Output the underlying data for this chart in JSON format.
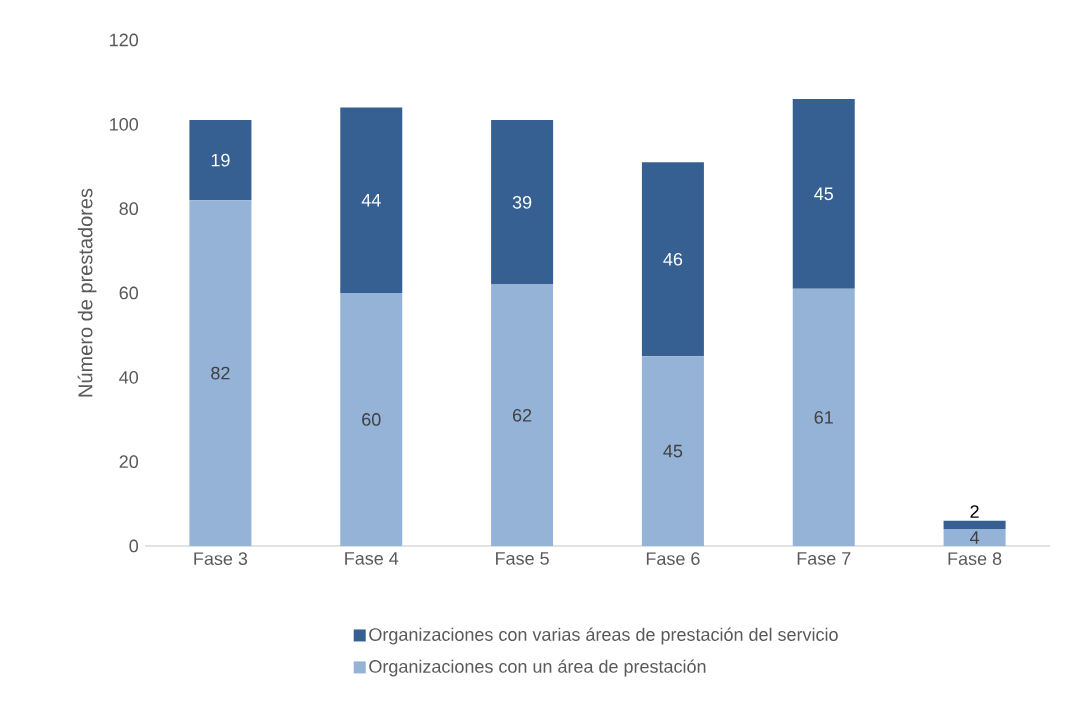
{
  "chart_data": {
    "type": "bar",
    "stacked": true,
    "ylabel": "Número de prestadores",
    "categories": [
      "Fase 3",
      "Fase 4",
      "Fase 5",
      "Fase 6",
      "Fase 7",
      "Fase 8"
    ],
    "series": [
      {
        "name": "Organizaciones con un área de prestación",
        "color": "#95b3d7",
        "values": [
          82,
          60,
          62,
          45,
          61,
          4
        ]
      },
      {
        "name": "Organizaciones con varias áreas de prestación del servicio",
        "color": "#376092",
        "values": [
          19,
          44,
          39,
          46,
          45,
          2
        ]
      }
    ],
    "ylim": [
      0,
      120
    ],
    "yticks": [
      0,
      20,
      40,
      60,
      80,
      100,
      120
    ],
    "data_labels": true,
    "legend": "bottom",
    "grid": false
  }
}
